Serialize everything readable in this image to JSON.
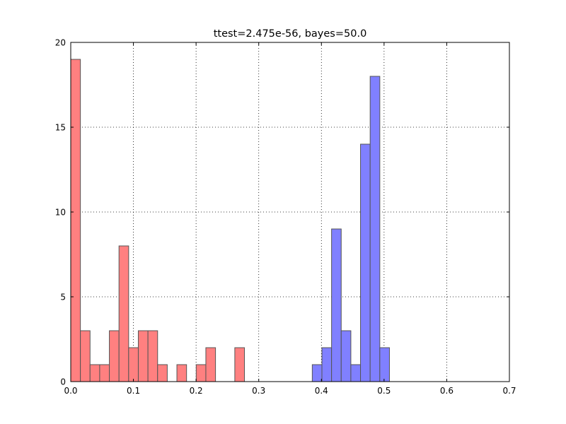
{
  "chart_data": {
    "type": "bar",
    "title": "ttest=2.475e-56, bayes=50.0",
    "xlabel": "",
    "ylabel": "",
    "xlim": [
      0.0,
      0.7
    ],
    "ylim": [
      0,
      20
    ],
    "xticks": [
      "0.0",
      "0.1",
      "0.2",
      "0.3",
      "0.4",
      "0.5",
      "0.6",
      "0.7"
    ],
    "yticks": [
      "0",
      "5",
      "10",
      "15",
      "20"
    ],
    "grid": true,
    "series": [
      {
        "color": "#ff8080",
        "bin_width": 0.0154,
        "bins": [
          {
            "x": 0.0,
            "count": 19
          },
          {
            "x": 0.0154,
            "count": 3
          },
          {
            "x": 0.0308,
            "count": 1
          },
          {
            "x": 0.0462,
            "count": 1
          },
          {
            "x": 0.0616,
            "count": 3
          },
          {
            "x": 0.077,
            "count": 8
          },
          {
            "x": 0.0924,
            "count": 2
          },
          {
            "x": 0.1078,
            "count": 3
          },
          {
            "x": 0.1232,
            "count": 3
          },
          {
            "x": 0.1386,
            "count": 1
          },
          {
            "x": 0.1694,
            "count": 1
          },
          {
            "x": 0.2002,
            "count": 1
          },
          {
            "x": 0.2156,
            "count": 2
          },
          {
            "x": 0.2618,
            "count": 2
          }
        ]
      },
      {
        "color": "#8080ff",
        "bin_width": 0.0154,
        "bins": [
          {
            "x": 0.3854,
            "count": 1
          },
          {
            "x": 0.4008,
            "count": 2
          },
          {
            "x": 0.4162,
            "count": 9
          },
          {
            "x": 0.4316,
            "count": 3
          },
          {
            "x": 0.447,
            "count": 1
          },
          {
            "x": 0.4624,
            "count": 14
          },
          {
            "x": 0.4778,
            "count": 18
          },
          {
            "x": 0.4932,
            "count": 2
          }
        ]
      }
    ]
  }
}
